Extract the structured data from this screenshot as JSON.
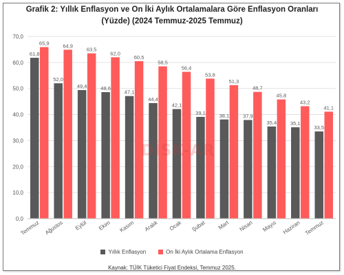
{
  "title_lines": [
    "Grafik 2: Yıllık Enflasyon ve On İki Aylık Ortalamalara Göre Enflasyon Oranları",
    "(Yüzde) (2024 Temmuz-2025 Temmuz)"
  ],
  "source": "Kaynak: TÜİK Tüketici Fiyat Endeksi, Temmuz 2025.",
  "watermark": "DİSK-AR",
  "colors": {
    "series1": "#595959",
    "series2": "#ff5b5b",
    "grid": "#d9d9d9",
    "axis_text": "#595959"
  },
  "chart_data": {
    "type": "bar",
    "categories": [
      "Temmuz",
      "Ağustos",
      "Eylül",
      "Ekim",
      "Kasım",
      "Aralık",
      "Ocak",
      "Şubat",
      "Mart",
      "Nisan",
      "Mayıs",
      "Haziran",
      "Temmuz"
    ],
    "series": [
      {
        "name": "Yıllık Enflasyon",
        "values": [
          61.8,
          52.0,
          49.4,
          48.6,
          47.1,
          44.4,
          42.1,
          39.1,
          38.1,
          37.9,
          35.4,
          35.1,
          33.5
        ]
      },
      {
        "name": "On İki Aylık Ortalama Enflasyon",
        "values": [
          65.9,
          64.9,
          63.5,
          62.0,
          60.5,
          58.5,
          56.4,
          53.8,
          51.3,
          48.7,
          45.8,
          43.2,
          41.1
        ]
      }
    ],
    "yticks": [
      "0,0",
      "10,0",
      "20,0",
      "30,0",
      "40,0",
      "50,0",
      "60,0",
      "70,0"
    ],
    "ylim": [
      0,
      70
    ],
    "grid": true,
    "legend_position": "bottom"
  }
}
